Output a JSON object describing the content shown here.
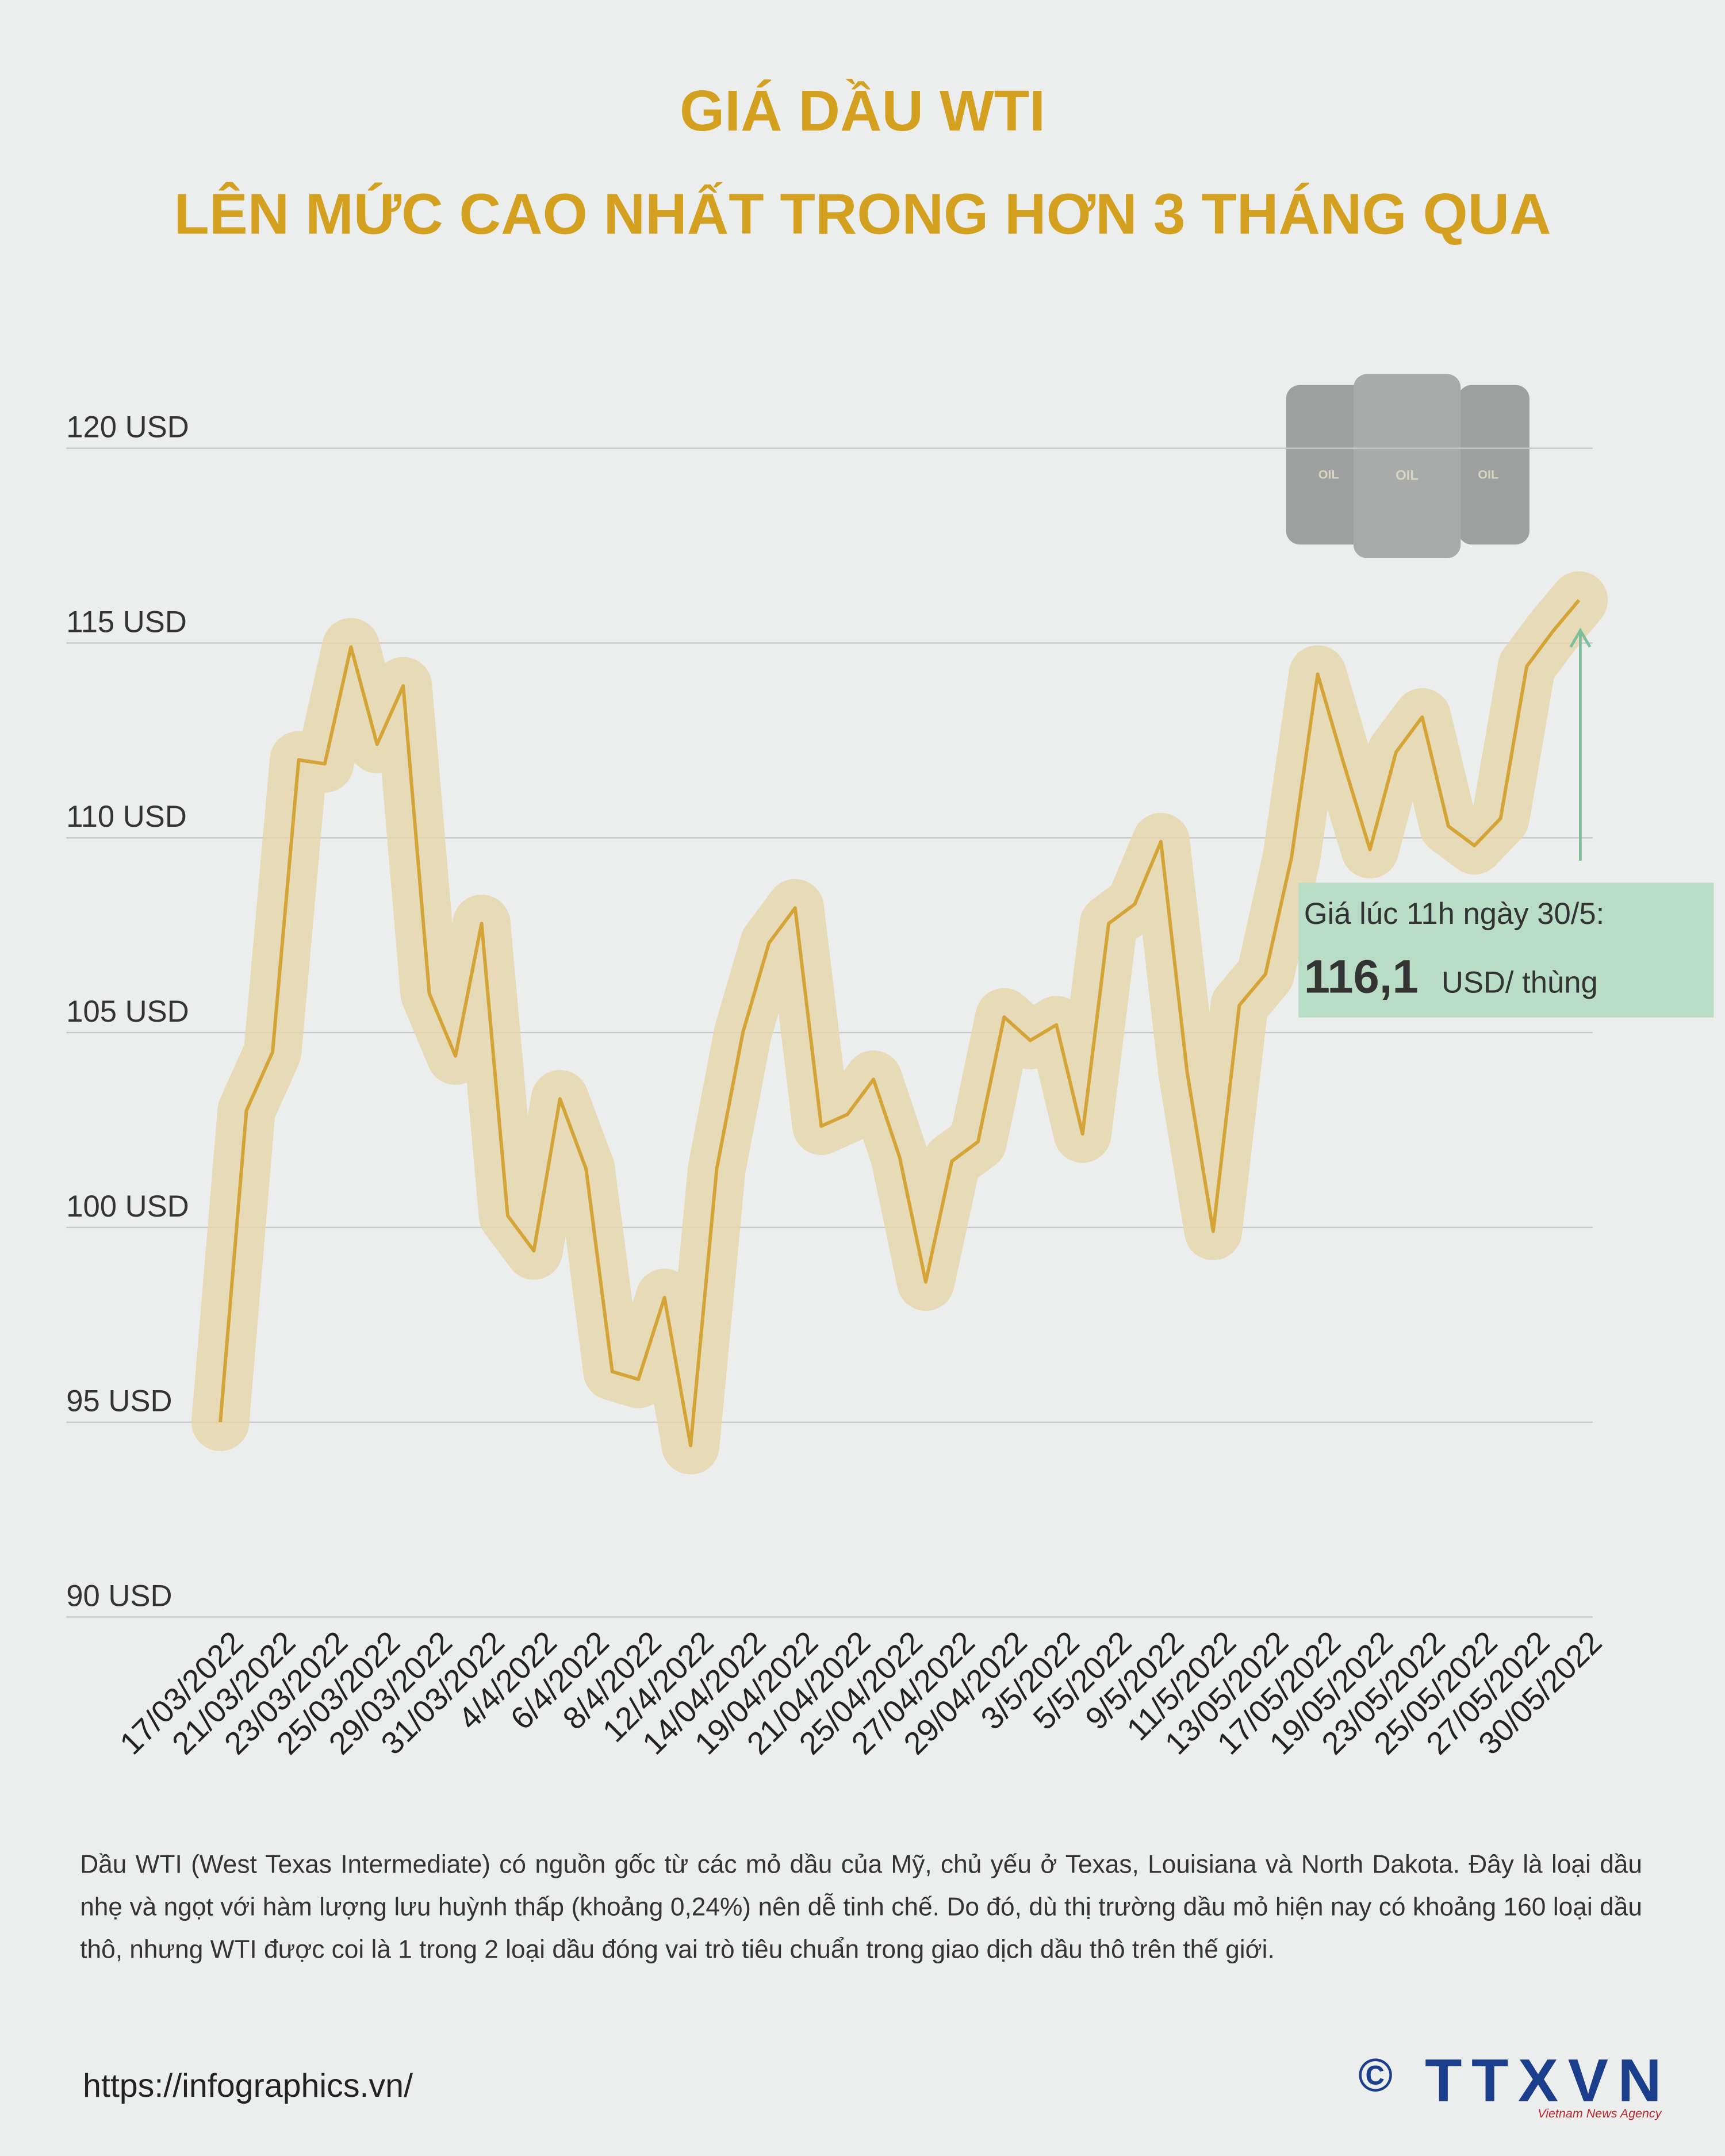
{
  "chart_data": {
    "type": "line",
    "title": [
      "GIÁ DẦU WTI",
      "LÊN MỨC CAO NHẤT TRONG HƠN 3 THÁNG QUA"
    ],
    "categories": [
      "17/03/2022",
      null,
      "21/03/2022",
      null,
      "23/03/2022",
      null,
      "25/03/2022",
      null,
      "29/03/2022",
      null,
      "31/03/2022",
      null,
      "4/4/2022",
      null,
      "6/4/2022",
      null,
      "8/4/2022",
      null,
      "12/4/2022",
      null,
      "14/04/2022",
      null,
      "19/04/2022",
      null,
      "21/04/2022",
      null,
      "25/04/2022",
      null,
      "27/04/2022",
      null,
      "29/04/2022",
      null,
      "3/5/2022",
      null,
      "5/5/2022",
      null,
      "9/5/2022",
      null,
      "11/5/2022",
      null,
      "13/05/2022",
      null,
      "17/05/2022",
      null,
      "19/05/2022",
      null,
      "23/05/2022",
      null,
      "25/05/2022",
      null,
      "27/05/2022",
      null,
      "30/05/2022"
    ],
    "series": [
      {
        "name": "WTI",
        "color": "#d4a437",
        "values": [
          95.0,
          103.0,
          104.5,
          112.0,
          111.9,
          114.9,
          112.4,
          113.9,
          106.0,
          104.4,
          107.8,
          100.3,
          99.4,
          103.3,
          101.5,
          96.3,
          96.1,
          98.2,
          94.4,
          101.5,
          105.0,
          107.3,
          108.2,
          102.6,
          102.9,
          103.8,
          101.8,
          98.6,
          101.7,
          102.2,
          105.4,
          104.8,
          105.2,
          102.4,
          107.8,
          108.3,
          109.9,
          104.0,
          99.9,
          105.7,
          106.5,
          109.5,
          114.2,
          111.9,
          109.7,
          112.2,
          113.1,
          110.3,
          109.8,
          110.5,
          114.4,
          115.3,
          116.1
        ]
      }
    ],
    "ylim": [
      90,
      120
    ],
    "yticks": [
      {
        "value": 90,
        "label": "90 USD"
      },
      {
        "value": 95,
        "label": "95 USD"
      },
      {
        "value": 100,
        "label": "100 USD"
      },
      {
        "value": 105,
        "label": "105 USD"
      },
      {
        "value": 110,
        "label": "110 USD"
      },
      {
        "value": 115,
        "label": "115 USD"
      },
      {
        "value": 120,
        "label": "120 USD"
      }
    ],
    "grid": true,
    "annotation": {
      "label": "Giá lúc 11h ngày 30/5:",
      "value": 116.1,
      "value_label": "116,1",
      "unit": "USD/ thùng"
    },
    "icon_text": "OIL"
  },
  "footer": {
    "note": "Dầu WTI (West Texas Intermediate) có nguồn gốc từ các mỏ dầu của Mỹ, chủ yếu ở Texas, Louisiana và North Dakota. Đây là loại dầu nhẹ và ngọt với hàm lượng lưu huỳnh thấp (khoảng 0,24%) nên dễ tinh chế. Do đó, dù thị trường dầu mỏ hiện nay có khoảng 160 loại dầu thô, nhưng WTI được coi là 1 trong 2 loại dầu đóng vai trò tiêu chuẩn trong giao dịch dầu thô trên thế giới.",
    "url": "https://infographics.vn/",
    "copyright": "©",
    "logo": "TTXVN",
    "agency": "Vietnam News Agency"
  }
}
